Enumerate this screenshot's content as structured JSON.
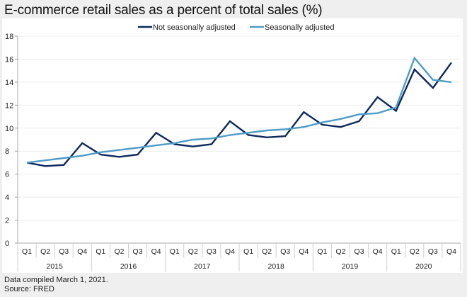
{
  "title": "E-commerce retail sales as a percent of total sales (%)",
  "footer": {
    "note": "Data compiled March 1, 2021.",
    "source": "Source: FRED"
  },
  "chart_data": {
    "type": "line",
    "title": "E-commerce retail sales as a percent of total sales (%)",
    "xlabel": "",
    "ylabel": "",
    "ylim": [
      0,
      18
    ],
    "yticks": [
      0,
      2,
      4,
      6,
      8,
      10,
      12,
      14,
      16,
      18
    ],
    "grid": true,
    "legend_position": "top-center",
    "x": [
      "Q1",
      "Q2",
      "Q3",
      "Q4",
      "Q1",
      "Q2",
      "Q3",
      "Q4",
      "Q1",
      "Q2",
      "Q3",
      "Q4",
      "Q1",
      "Q2",
      "Q3",
      "Q4",
      "Q1",
      "Q2",
      "Q3",
      "Q4",
      "Q1",
      "Q2",
      "Q3",
      "Q4"
    ],
    "years": [
      "2015",
      "2016",
      "2017",
      "2018",
      "2019",
      "2020"
    ],
    "series": [
      {
        "name": "Not seasonally adjusted",
        "color": "#0d2a5c",
        "values": [
          7.0,
          6.7,
          6.8,
          8.7,
          7.7,
          7.5,
          7.7,
          9.6,
          8.6,
          8.4,
          8.6,
          10.6,
          9.4,
          9.2,
          9.3,
          11.4,
          10.3,
          10.1,
          10.6,
          12.7,
          11.5,
          15.1,
          13.5,
          15.7
        ]
      },
      {
        "name": "Seasonally adjusted",
        "color": "#4f9cc8",
        "values": [
          7.0,
          7.2,
          7.4,
          7.6,
          7.9,
          8.1,
          8.3,
          8.5,
          8.7,
          9.0,
          9.1,
          9.4,
          9.6,
          9.8,
          9.9,
          10.1,
          10.5,
          10.8,
          11.2,
          11.3,
          11.8,
          16.1,
          14.2,
          14.0
        ]
      }
    ]
  }
}
